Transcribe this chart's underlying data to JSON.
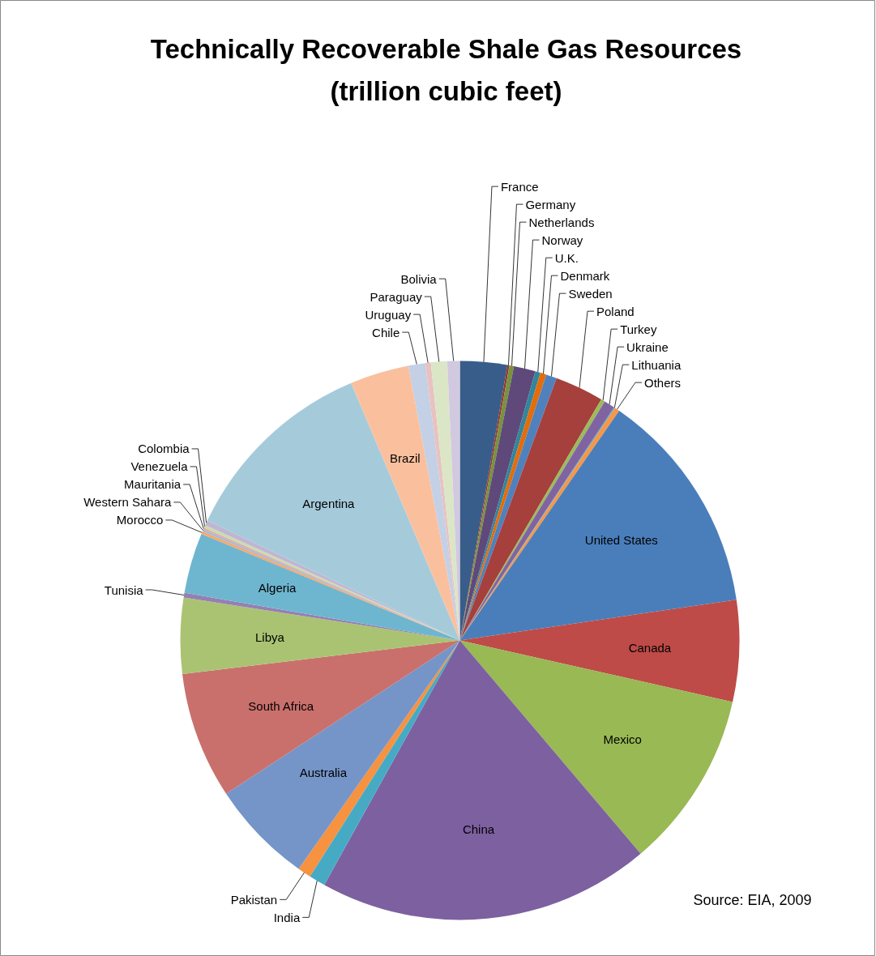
{
  "chart_data": {
    "type": "pie",
    "title": "Technically Recoverable Shale Gas Resources\n(trillion cubic feet)",
    "annotations": [
      "Source: EIA, 2009"
    ],
    "categories": [
      "France",
      "Germany",
      "Netherlands",
      "Norway",
      "U.K.",
      "Denmark",
      "Sweden",
      "Poland",
      "Turkey",
      "Ukraine",
      "Lithuania",
      "Others",
      "United States",
      "Canada",
      "Mexico",
      "China",
      "India",
      "Pakistan",
      "Australia",
      "South Africa",
      "Libya",
      "Tunisia",
      "Algeria",
      "Morocco",
      "Western Sahara",
      "Mauritania",
      "Venezuela",
      "Colombia",
      "Argentina",
      "Brazil",
      "Chile",
      "Uruguay",
      "Paraguay",
      "Bolivia"
    ],
    "values": [
      2.72,
      0.12,
      0.26,
      1.25,
      0.3,
      0.35,
      0.62,
      2.82,
      0.23,
      0.63,
      0.06,
      0.29,
      13.02,
      5.86,
      10.28,
      19.25,
      0.95,
      0.77,
      5.98,
      7.32,
      4.38,
      0.27,
      3.49,
      0.17,
      0.11,
      0.1,
      0.17,
      0.29,
      11.58,
      3.41,
      0.97,
      0.32,
      0.94,
      0.72
    ],
    "colors": [
      "#385d8a",
      "#953735",
      "#77933c",
      "#5f497a",
      "#31859c",
      "#e46c0a",
      "#4f81bd",
      "#a5403c",
      "#9bbb59",
      "#8064a2",
      "#4bacc6",
      "#f79646",
      "#4a7ebb",
      "#be4b48",
      "#98b954",
      "#7d60a0",
      "#46aac5",
      "#f69240",
      "#7595c8",
      "#c9706d",
      "#aac372",
      "#9480b3",
      "#6eb6cf",
      "#f8a86a",
      "#a3b9dc",
      "#dfa8a7",
      "#cbdcac",
      "#c0b5d3",
      "#a5cbdb",
      "#fac09e",
      "#c3d0e6",
      "#e8c2c1",
      "#dbe6c6",
      "#d1c9e0"
    ]
  }
}
